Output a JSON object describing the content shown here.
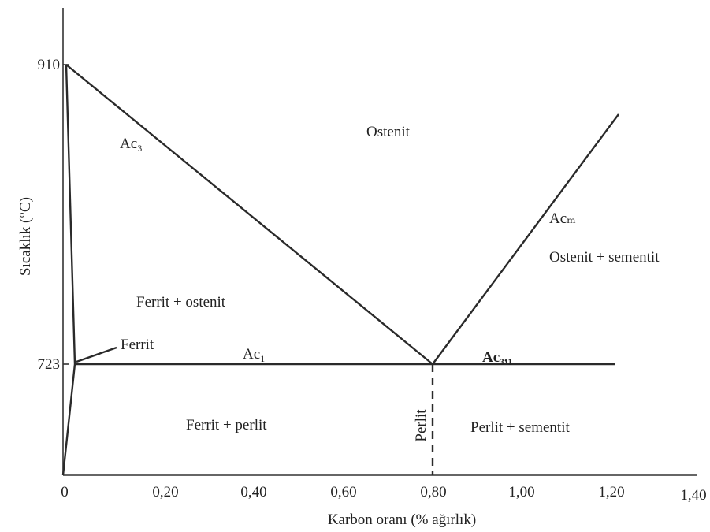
{
  "axes": {
    "y_label": "Sıcaklık (°C)",
    "x_label": "Karbon oranı (% ağırlık)",
    "y_ticks": [
      "910",
      "723"
    ],
    "x_ticks": [
      "0",
      "0,20",
      "0,40",
      "0,60",
      "0,80",
      "1,00",
      "1,20",
      "1,40"
    ]
  },
  "lines": {
    "ac3": "Ac₃",
    "ac1": "Ac₁",
    "acm": "Acₘ",
    "ac31": "Ac₃,₁"
  },
  "regions": {
    "ostenit": "Ostenit",
    "ostenit_sementit": "Ostenit + sementit",
    "ferrit_ostenit": "Ferrit + ostenit",
    "ferrit": "Ferrit",
    "ferrit_perlit": "Ferrit + perlit",
    "perlit": "Perlit",
    "perlit_sementit": "Perlit + sementit"
  }
}
